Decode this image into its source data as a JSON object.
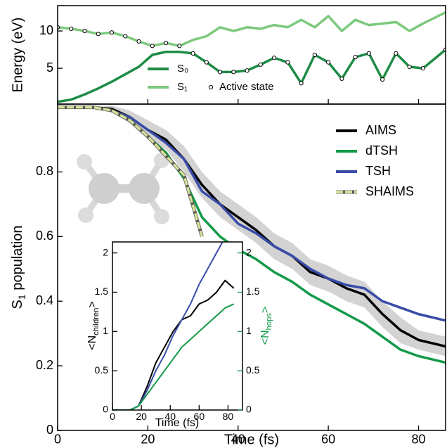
{
  "chart_data": [
    {
      "type": "line",
      "ylabel": "Energy (eV)",
      "x": [
        0,
        3,
        6,
        9,
        12,
        15,
        18,
        21,
        24,
        27,
        30,
        33,
        36,
        39,
        42,
        45,
        48,
        51,
        54,
        57,
        60,
        63,
        66,
        69,
        72,
        75,
        78,
        81,
        86
      ],
      "xlim": [
        0,
        86
      ],
      "ylim": [
        0.2,
        13.4
      ],
      "xticks": [
        0,
        20,
        40,
        60,
        80
      ],
      "yticks": [
        5,
        10
      ],
      "series": [
        {
          "name": "S₀",
          "color": "#1e8c45",
          "values": [
            0.5,
            0.8,
            1.5,
            2.3,
            3.2,
            4.2,
            5.2,
            6.8,
            7.2,
            7.2,
            7.0,
            5.8,
            4.5,
            4.5,
            4.7,
            5.5,
            6.4,
            5.8,
            3.0,
            6.8,
            5.8,
            3.6,
            6.5,
            7.0,
            3.5,
            7.0,
            5.2,
            5.0,
            7.5
          ]
        },
        {
          "name": "S₁",
          "color": "#7dc97d",
          "values": [
            10.5,
            10.3,
            10.0,
            9.6,
            9.8,
            9.3,
            8.6,
            8.0,
            8.4,
            8.0,
            8.8,
            9.3,
            10.5,
            10.0,
            10.5,
            10.3,
            10.8,
            10.5,
            11.5,
            10.5,
            12.0,
            10.0,
            11.5,
            10.8,
            11.0,
            11.2,
            10.0,
            11.0,
            12.5
          ]
        },
        {
          "name": "Active state",
          "color": "#000000",
          "marker": "circle",
          "values": [
            10.5,
            10.3,
            10.0,
            9.6,
            9.8,
            9.3,
            8.6,
            8.0,
            8.4,
            8.0,
            7.0,
            5.8,
            4.5,
            4.5,
            4.7,
            5.5,
            6.4,
            5.8,
            3.0,
            6.8,
            5.8,
            3.6,
            6.5,
            7.0,
            3.5,
            7.0,
            5.2,
            5.0,
            7.5
          ]
        }
      ]
    },
    {
      "type": "line",
      "xlabel": "Time (fs)",
      "ylabel": {
        "text": "S",
        "sub": "1",
        "end": " population"
      },
      "x": [
        0,
        4,
        8,
        12,
        16,
        20,
        24,
        28,
        32,
        36,
        40,
        44,
        48,
        52,
        56,
        60,
        64,
        68,
        72,
        76,
        80,
        86
      ],
      "xlim": [
        0,
        86
      ],
      "ylim": [
        0,
        1.01
      ],
      "xticks": [
        0,
        20,
        40,
        60,
        80
      ],
      "yticks": [
        0,
        0.2,
        0.4,
        0.6,
        0.8
      ],
      "band_color": "#d3d3d3",
      "series": [
        {
          "name": "AIMS",
          "color": "#000000",
          "values": [
            1,
            1,
            1,
            0.995,
            0.97,
            0.93,
            0.9,
            0.84,
            0.76,
            0.7,
            0.66,
            0.62,
            0.57,
            0.54,
            0.49,
            0.47,
            0.44,
            0.42,
            0.36,
            0.31,
            0.28,
            0.26
          ],
          "errors": [
            0,
            0,
            0,
            0.01,
            0.02,
            0.03,
            0.03,
            0.04,
            0.04,
            0.04,
            0.04,
            0.04,
            0.04,
            0.04,
            0.04,
            0.04,
            0.04,
            0.04,
            0.04,
            0.04,
            0.03,
            0.03
          ]
        },
        {
          "name": "dTSH",
          "color": "#129a48",
          "values": [
            1,
            1,
            1,
            0.99,
            0.96,
            0.91,
            0.86,
            0.78,
            0.66,
            0.6,
            0.56,
            0.53,
            0.49,
            0.46,
            0.42,
            0.39,
            0.36,
            0.33,
            0.29,
            0.25,
            0.23,
            0.21
          ]
        },
        {
          "name": "TSH",
          "color": "#3a4ca8",
          "values": [
            1,
            1,
            1,
            0.99,
            0.97,
            0.93,
            0.89,
            0.84,
            0.74,
            0.7,
            0.64,
            0.61,
            0.57,
            0.54,
            0.5,
            0.47,
            0.45,
            0.44,
            0.4,
            0.38,
            0.36,
            0.34
          ]
        },
        {
          "name": "SHAIMS",
          "color": "#d4e09a",
          "dash": true,
          "values": [
            1,
            1,
            1,
            0.99,
            0.96,
            0.91,
            0.85,
            0.79,
            0.6,
            null,
            null,
            null,
            null,
            null,
            null,
            null,
            null,
            null,
            null,
            null,
            null,
            null
          ]
        }
      ]
    },
    {
      "type": "line",
      "xlabel": "Time (fs)",
      "ylabel": {
        "text": "<N",
        "sub": "children",
        "end": ">"
      },
      "y2label": {
        "text": "<N",
        "sub": "hops",
        "end": ">"
      },
      "y2color": "#129a48",
      "x": [
        0,
        6,
        12,
        18,
        24,
        30,
        36,
        42,
        48,
        54,
        60,
        66,
        72,
        78,
        84
      ],
      "xlim": [
        0,
        90
      ],
      "ylim": [
        0,
        2.14
      ],
      "y2lim": [
        0,
        2.14
      ],
      "xticks": [
        0,
        20,
        40,
        60,
        80
      ],
      "yticks": [
        0,
        0.5,
        1,
        1.5,
        2
      ],
      "y2ticks": [
        0,
        0.5,
        1,
        1.5,
        2
      ],
      "series": [
        {
          "color": "#000000",
          "values": [
            0,
            0,
            0,
            0.05,
            0.3,
            0.6,
            0.8,
            1.0,
            1.15,
            1.2,
            1.35,
            1.4,
            1.5,
            1.65,
            1.55
          ]
        },
        {
          "color": "#3a4ca8",
          "axis": "y2",
          "values": [
            0,
            0,
            0,
            0.05,
            0.25,
            0.5,
            0.7,
            0.95,
            1.15,
            1.35,
            1.6,
            1.8,
            2.0,
            2.2,
            2.4
          ]
        },
        {
          "color": "#129a48",
          "axis": "y2",
          "values": [
            0,
            0,
            0,
            0.05,
            0.2,
            0.35,
            0.5,
            0.65,
            0.8,
            0.9,
            1.0,
            1.1,
            1.2,
            1.3,
            1.35
          ]
        }
      ]
    }
  ]
}
